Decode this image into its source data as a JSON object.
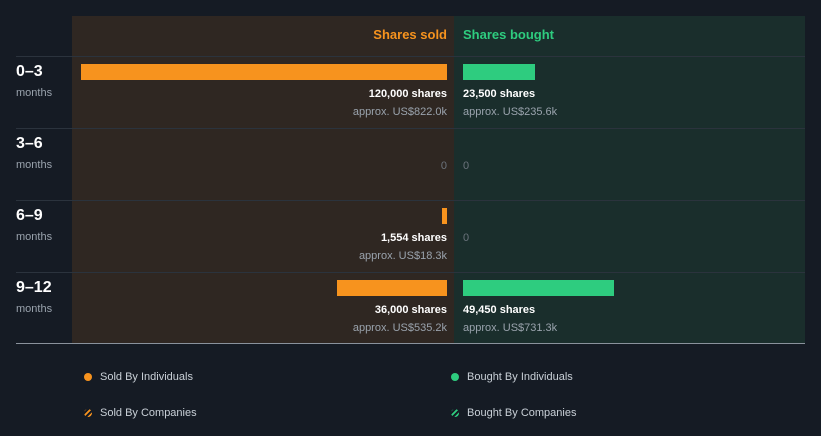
{
  "header": {
    "sold_label": "Shares sold",
    "bought_label": "Shares bought"
  },
  "colors": {
    "sold": "#f7931e",
    "bought": "#2ecc7f"
  },
  "chart_data": {
    "type": "bar",
    "orientation": "horizontal-diverging",
    "categories": [
      "0–3 months",
      "3–6 months",
      "6–9 months",
      "9–12 months"
    ],
    "series": [
      {
        "name": "Shares sold",
        "values": [
          120000,
          0,
          1554,
          36000
        ]
      },
      {
        "name": "Shares bought",
        "values": [
          23500,
          0,
          0,
          49450
        ]
      }
    ]
  },
  "rows": [
    {
      "period": "0–3",
      "unit": "months",
      "sold": {
        "shares": 120000,
        "shares_label": "120,000 shares",
        "approx": "approx. US$822.0k"
      },
      "bought": {
        "shares": 23500,
        "shares_label": "23,500 shares",
        "approx": "approx. US$235.6k"
      }
    },
    {
      "period": "3–6",
      "unit": "months",
      "sold": {
        "shares": 0,
        "zero_label": "0"
      },
      "bought": {
        "shares": 0,
        "zero_label": "0"
      }
    },
    {
      "period": "6–9",
      "unit": "months",
      "sold": {
        "shares": 1554,
        "shares_label": "1,554 shares",
        "approx": "approx. US$18.3k"
      },
      "bought": {
        "shares": 0,
        "zero_label": "0"
      }
    },
    {
      "period": "9–12",
      "unit": "months",
      "sold": {
        "shares": 36000,
        "shares_label": "36,000 shares",
        "approx": "approx. US$535.2k"
      },
      "bought": {
        "shares": 49450,
        "shares_label": "49,450 shares",
        "approx": "approx. US$731.3k"
      }
    }
  ],
  "legend": {
    "sold_individuals": "Sold By Individuals",
    "bought_individuals": "Bought By Individuals",
    "sold_companies": "Sold By Companies",
    "bought_companies": "Bought By Companies"
  }
}
